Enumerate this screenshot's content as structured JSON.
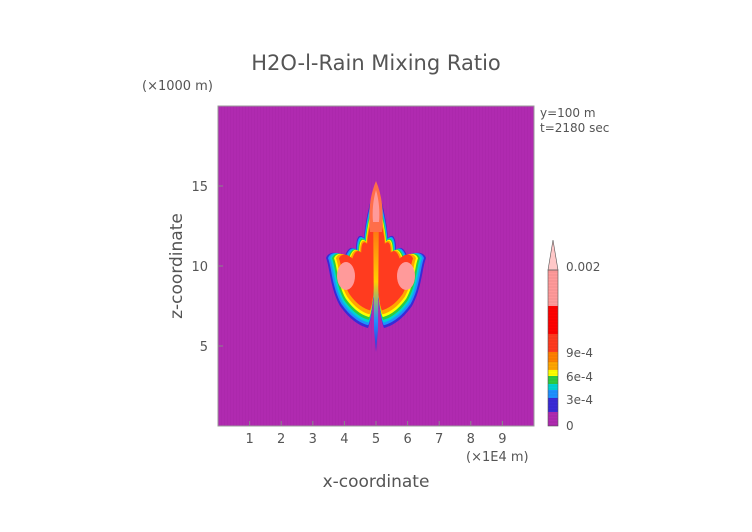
{
  "chart_data": {
    "type": "heatmap",
    "title": "H2O-l-Rain Mixing Ratio",
    "xlabel": "x-coordinate",
    "ylabel": "z-coordinate",
    "x_unit": "(×1E4 m)",
    "y_unit": "(×1000 m)",
    "xlim": [
      0,
      10
    ],
    "ylim": [
      0,
      20
    ],
    "x_ticks": [
      "1",
      "2",
      "3",
      "4",
      "5",
      "6",
      "7",
      "8",
      "9"
    ],
    "y_ticks": [
      "5",
      "10",
      "15"
    ],
    "annotations": [
      "y=100 m",
      "t=2180 sec"
    ],
    "background_value": 0,
    "colorbar": {
      "min": 0,
      "max": 0.002,
      "labels": [
        "0",
        "3e-4",
        "6e-4",
        "9e-4",
        "0.002"
      ],
      "colors": [
        "#B02AB0",
        "#3A2AD6",
        "#1E90FF",
        "#00D2D2",
        "#2ECC40",
        "#FFFF00",
        "#FFA500",
        "#FF7F00",
        "#FF3B1F",
        "#FF0000",
        "#FF9A9A",
        "#FFC8C8"
      ]
    }
  }
}
